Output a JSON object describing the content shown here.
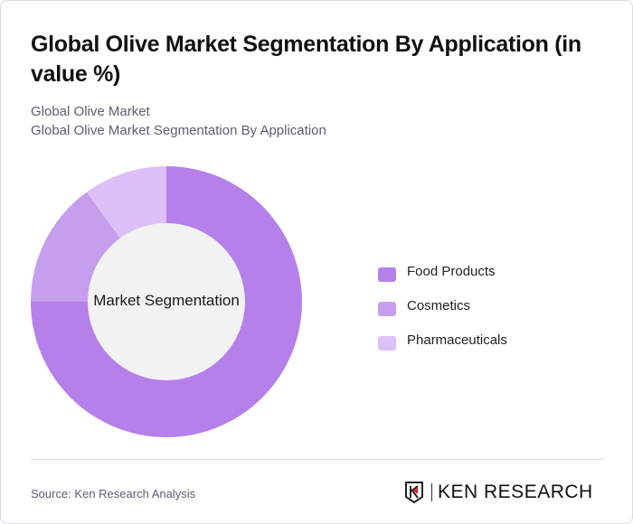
{
  "header": {
    "title": "Global Olive Market Segmentation By Application (in value %)",
    "subtitle_1": "Global Olive Market",
    "subtitle_2": "Global Olive Market Segmentation By Application"
  },
  "chart": {
    "center_label": "Market Segmentation"
  },
  "legend": {
    "items": [
      {
        "label": "Food Products",
        "color": "#b580ea"
      },
      {
        "label": "Cosmetics",
        "color": "#c69eee"
      },
      {
        "label": "Pharmaceuticals",
        "color": "#dcc0f7"
      }
    ]
  },
  "footer": {
    "source": "Source: Ken Research Analysis",
    "logo_text": "KEN RESEARCH"
  },
  "chart_data": {
    "type": "pie",
    "subtype": "donut",
    "title": "Global Olive Market Segmentation By Application (in value %)",
    "center_label": "Market Segmentation",
    "categories": [
      "Food Products",
      "Cosmetics",
      "Pharmaceuticals"
    ],
    "values": [
      75,
      15,
      10
    ],
    "colors": [
      "#b580ea",
      "#c69eee",
      "#dcc0f7"
    ],
    "legend_position": "right",
    "unit": "%"
  }
}
